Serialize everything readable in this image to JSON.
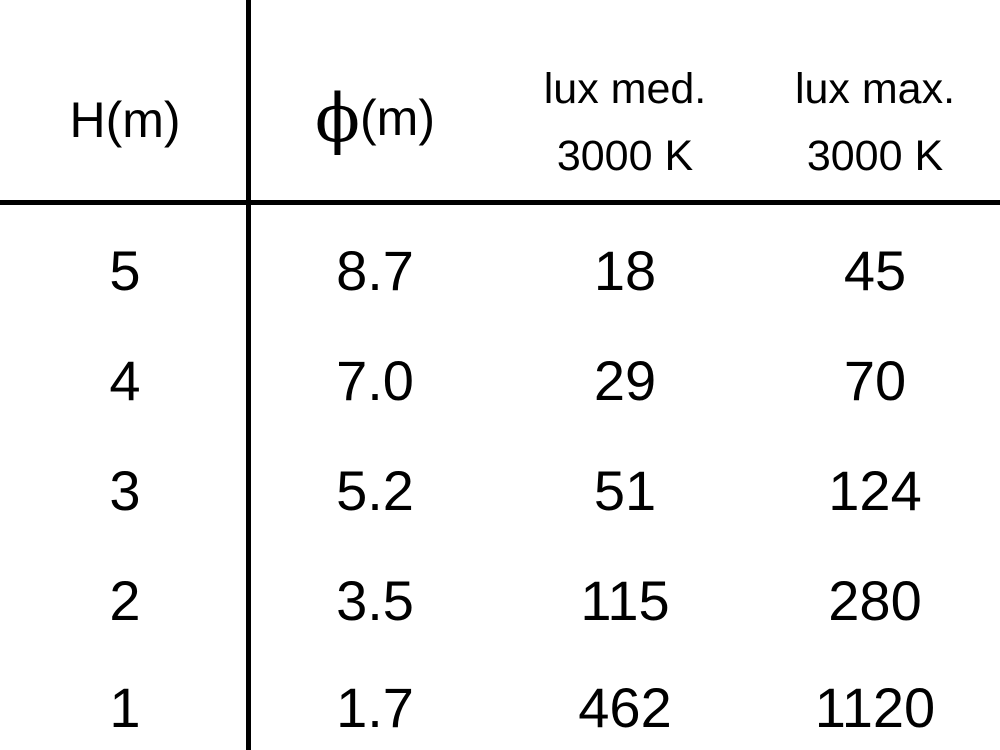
{
  "chart_data": {
    "type": "table",
    "columns": [
      {
        "symbol": "",
        "label": "H(m)"
      },
      {
        "symbol": "ϕ",
        "label": "(m)"
      },
      {
        "line1": "lux med.",
        "line2": "3000 K"
      },
      {
        "line1": "lux max.",
        "line2": "3000 K"
      }
    ],
    "rows": [
      [
        "5",
        "8.7",
        "18",
        "45"
      ],
      [
        "4",
        "7.0",
        "29",
        "70"
      ],
      [
        "3",
        "5.2",
        "51",
        "124"
      ],
      [
        "2",
        "3.5",
        "115",
        "280"
      ],
      [
        "1",
        "1.7",
        "462",
        "1120"
      ]
    ]
  }
}
